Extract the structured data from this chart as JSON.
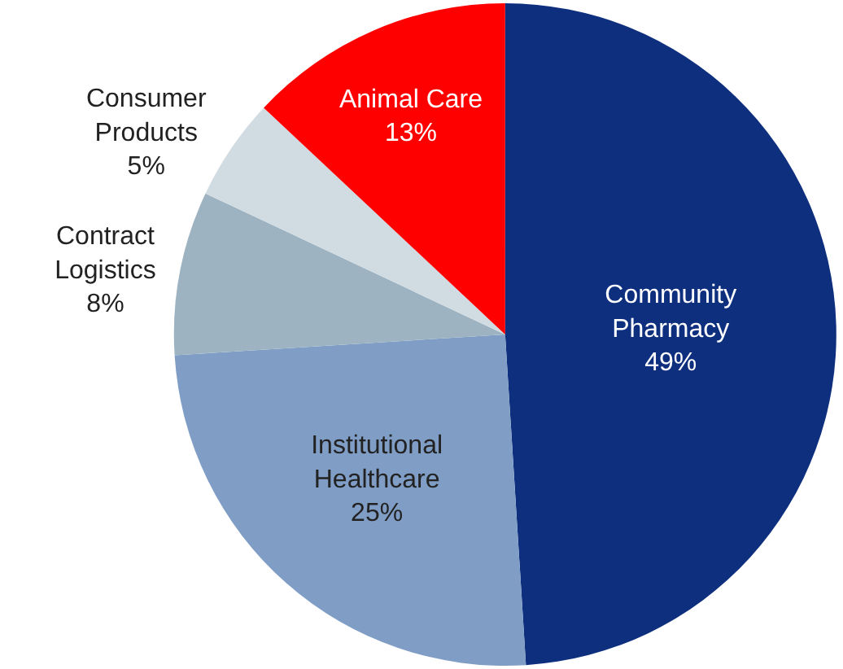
{
  "chart_data": {
    "type": "pie",
    "categories": [
      "Community Pharmacy",
      "Institutional Healthcare",
      "Contract Logistics",
      "Consumer Products",
      "Animal Care"
    ],
    "values": [
      49,
      25,
      8,
      5,
      13
    ],
    "colors": [
      "#0e2f7e",
      "#7f9dc5",
      "#9db3c1",
      "#d0dbe2",
      "#ff0000"
    ],
    "value_labels": [
      "49%",
      "25%",
      "8%",
      "5%",
      "13%"
    ],
    "legend": false
  }
}
